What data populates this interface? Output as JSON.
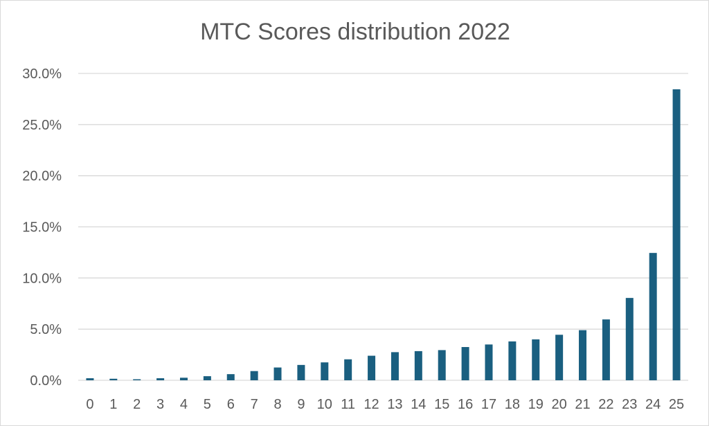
{
  "chart_data": {
    "type": "bar",
    "title": "MTC Scores distribution 2022",
    "xlabel": "",
    "ylabel": "",
    "categories": [
      "0",
      "1",
      "2",
      "3",
      "4",
      "5",
      "6",
      "7",
      "8",
      "9",
      "10",
      "11",
      "12",
      "13",
      "14",
      "15",
      "16",
      "17",
      "18",
      "19",
      "20",
      "21",
      "22",
      "23",
      "24",
      "25"
    ],
    "values": [
      0.2,
      0.15,
      0.1,
      0.2,
      0.25,
      0.4,
      0.6,
      0.9,
      1.25,
      1.5,
      1.75,
      2.05,
      2.4,
      2.75,
      2.85,
      2.95,
      3.25,
      3.5,
      3.8,
      4.0,
      4.45,
      4.9,
      5.95,
      8.05,
      12.45,
      28.45
    ],
    "ylim": [
      0,
      30
    ],
    "y_ticks": [
      "0.0%",
      "5.0%",
      "10.0%",
      "15.0%",
      "20.0%",
      "25.0%",
      "30.0%"
    ],
    "y_tick_values": [
      0,
      5,
      10,
      15,
      20,
      25,
      30
    ],
    "grid": true,
    "legend": "none",
    "bar_color": "#1a5f80",
    "grid_color": "#d9d9d9"
  }
}
